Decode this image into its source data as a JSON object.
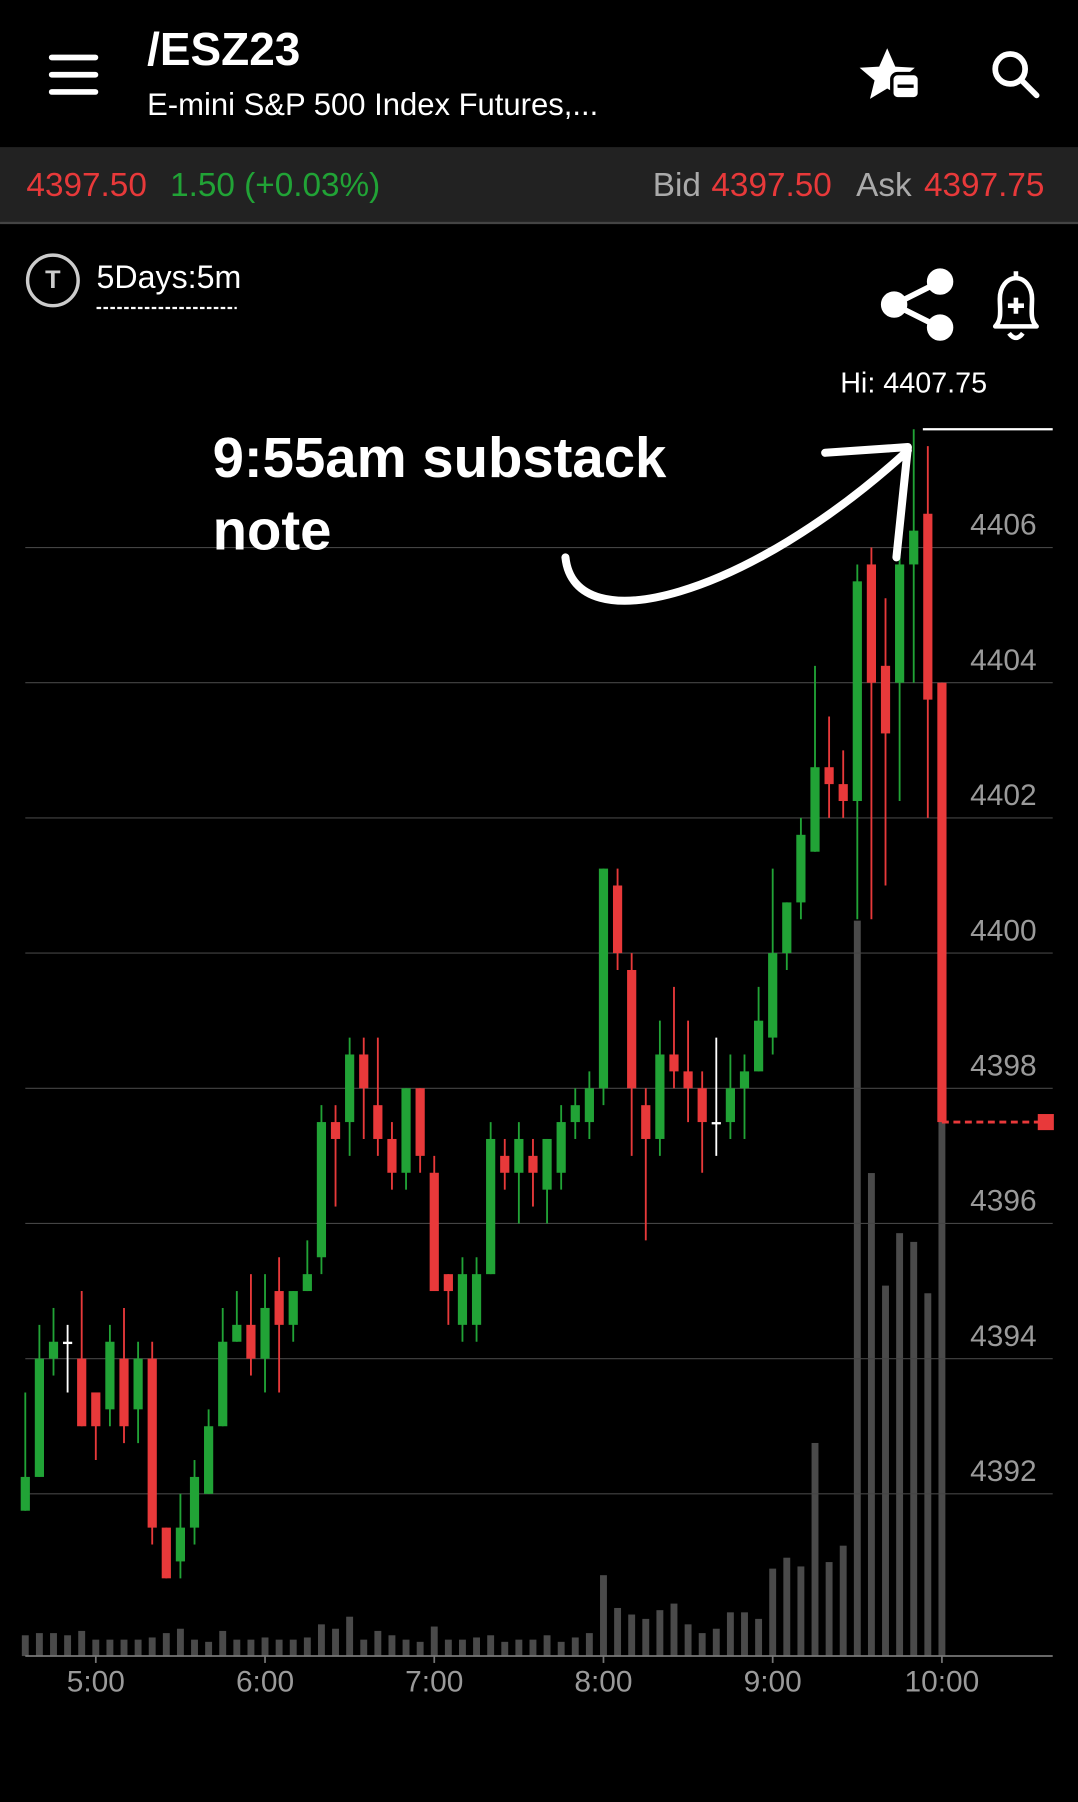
{
  "header": {
    "symbol": "/ESZ23",
    "description": "E-mini S&P 500 Index Futures,..."
  },
  "quote": {
    "last": "4397.50",
    "change": "1.50 (+0.03%)",
    "bid_label": "Bid",
    "bid": "4397.50",
    "ask_label": "Ask",
    "ask": "4397.75"
  },
  "timeframe": "5Days:5m",
  "chart_data": {
    "type": "candlestick",
    "annotation_lines": [
      "9:55am substack",
      "note"
    ],
    "hi": {
      "value": 4407.75,
      "label": "Hi: 4407.75"
    },
    "last_price": 4397.5,
    "up_color": "#21a336",
    "down_color": "#e8393a",
    "flat_color": "#ffffff",
    "volume_color": "#4a4a4a",
    "categories": [
      null,
      null,
      null,
      null,
      null,
      "5:00",
      null,
      null,
      null,
      null,
      null,
      null,
      null,
      null,
      null,
      null,
      null,
      "6:00",
      null,
      null,
      null,
      null,
      null,
      null,
      null,
      null,
      null,
      null,
      null,
      "7:00",
      null,
      null,
      null,
      null,
      null,
      null,
      null,
      null,
      null,
      null,
      null,
      "8:00",
      null,
      null,
      null,
      null,
      null,
      null,
      null,
      null,
      null,
      null,
      null,
      "9:00",
      null,
      null,
      null,
      null,
      null,
      null,
      null,
      null,
      null,
      null,
      null,
      "10:00"
    ],
    "open": [
      4391.75,
      4392.25,
      4394.0,
      4394.25,
      4394.0,
      4393.5,
      4393.25,
      4394.0,
      4393.25,
      4394.0,
      4391.5,
      4391.0,
      4391.5,
      4392.0,
      4393.0,
      4394.25,
      4394.5,
      4394.0,
      4395.0,
      4394.5,
      4395.0,
      4395.5,
      4397.5,
      4397.5,
      4398.5,
      4397.75,
      4397.25,
      4396.75,
      4398.0,
      4396.75,
      4395.25,
      4394.5,
      4394.5,
      4395.25,
      4397.0,
      4396.75,
      4397.0,
      4396.5,
      4396.75,
      4397.5,
      4397.5,
      4398.0,
      4401.0,
      4399.75,
      4397.75,
      4397.25,
      4398.5,
      4398.25,
      4398.0,
      4397.5,
      4397.5,
      4398.0,
      4398.25,
      4398.75,
      4400.0,
      4400.75,
      4401.5,
      4402.75,
      4402.5,
      4402.25,
      4405.75,
      4404.25,
      4404.0,
      4405.75,
      4406.5,
      4404.0
    ],
    "high": [
      4393.5,
      4394.5,
      4394.75,
      4394.5,
      4395.0,
      4393.5,
      4394.5,
      4394.75,
      4394.25,
      4394.25,
      4391.5,
      4392.0,
      4392.5,
      4393.25,
      4394.75,
      4395.0,
      4395.25,
      4395.25,
      4395.5,
      4395.0,
      4395.75,
      4397.75,
      4397.75,
      4398.75,
      4398.75,
      4398.75,
      4397.5,
      4398.0,
      4398.0,
      4397.0,
      4395.25,
      4395.5,
      4395.5,
      4397.5,
      4397.25,
      4397.5,
      4397.25,
      4397.25,
      4397.75,
      4398.0,
      4398.25,
      4401.25,
      4401.25,
      4400.0,
      4398.0,
      4399.0,
      4399.5,
      4399.0,
      4398.25,
      4398.75,
      4398.5,
      4398.5,
      4399.5,
      4401.25,
      4400.75,
      4402.0,
      4404.25,
      4403.5,
      4403.0,
      4405.75,
      4406.0,
      4405.25,
      4406.5,
      4407.75,
      4407.5,
      4404.0
    ],
    "low": [
      4391.75,
      4392.25,
      4393.75,
      4393.5,
      4393.0,
      4392.5,
      4393.0,
      4392.75,
      4392.75,
      4391.25,
      4390.75,
      4390.75,
      4391.25,
      4392.0,
      4393.0,
      4394.25,
      4393.75,
      4393.5,
      4393.5,
      4394.25,
      4395.0,
      4395.25,
      4396.25,
      4397.0,
      4397.25,
      4397.0,
      4396.5,
      4396.5,
      4396.75,
      4395.0,
      4394.5,
      4394.25,
      4394.25,
      4395.25,
      4396.5,
      4396.0,
      4396.25,
      4396.0,
      4396.5,
      4397.25,
      4397.25,
      4397.75,
      4399.75,
      4397.0,
      4395.75,
      4397.0,
      4398.0,
      4397.5,
      4396.75,
      4397.0,
      4397.25,
      4397.25,
      4398.25,
      4398.5,
      4399.75,
      4400.5,
      4401.5,
      4402.0,
      4402.0,
      4400.5,
      4400.5,
      4401.0,
      4402.25,
      4404.0,
      4402.0,
      4397.5
    ],
    "close": [
      4392.25,
      4394.0,
      4394.25,
      4394.25,
      4393.0,
      4393.0,
      4394.25,
      4393.0,
      4394.0,
      4391.5,
      4390.75,
      4391.5,
      4392.25,
      4393.0,
      4394.25,
      4394.5,
      4394.0,
      4394.75,
      4394.5,
      4395.0,
      4395.25,
      4397.5,
      4397.25,
      4398.5,
      4398.0,
      4397.25,
      4396.75,
      4398.0,
      4397.0,
      4395.0,
      4395.0,
      4395.25,
      4395.25,
      4397.25,
      4396.75,
      4397.25,
      4396.75,
      4397.25,
      4397.5,
      4397.75,
      4398.0,
      4401.25,
      4400.0,
      4398.0,
      4397.25,
      4398.5,
      4398.25,
      4398.0,
      4397.5,
      4397.5,
      4398.0,
      4398.25,
      4399.0,
      4400.0,
      4400.75,
      4401.75,
      4402.75,
      4402.5,
      4402.25,
      4405.5,
      4404.0,
      4403.25,
      4405.75,
      4406.25,
      4403.75,
      4397.5
    ],
    "volume": [
      19,
      21,
      21,
      19,
      23,
      15,
      15,
      15,
      15,
      17,
      21,
      25,
      15,
      13,
      23,
      15,
      15,
      17,
      15,
      15,
      17,
      29,
      25,
      36,
      15,
      23,
      19,
      15,
      13,
      27,
      15,
      15,
      17,
      19,
      13,
      15,
      15,
      19,
      13,
      17,
      21,
      74,
      44,
      38,
      34,
      42,
      48,
      29,
      21,
      25,
      40,
      40,
      34,
      80,
      90,
      82,
      195,
      86,
      101,
      673,
      442,
      339,
      387,
      379,
      332,
      490
    ],
    "vlim": [
      0,
      1200
    ],
    "ylim": [
      4389.6,
      4409.0
    ],
    "yticks": [
      4392,
      4394,
      4396,
      4398,
      4400,
      4402,
      4404,
      4406
    ],
    "grid": true
  }
}
